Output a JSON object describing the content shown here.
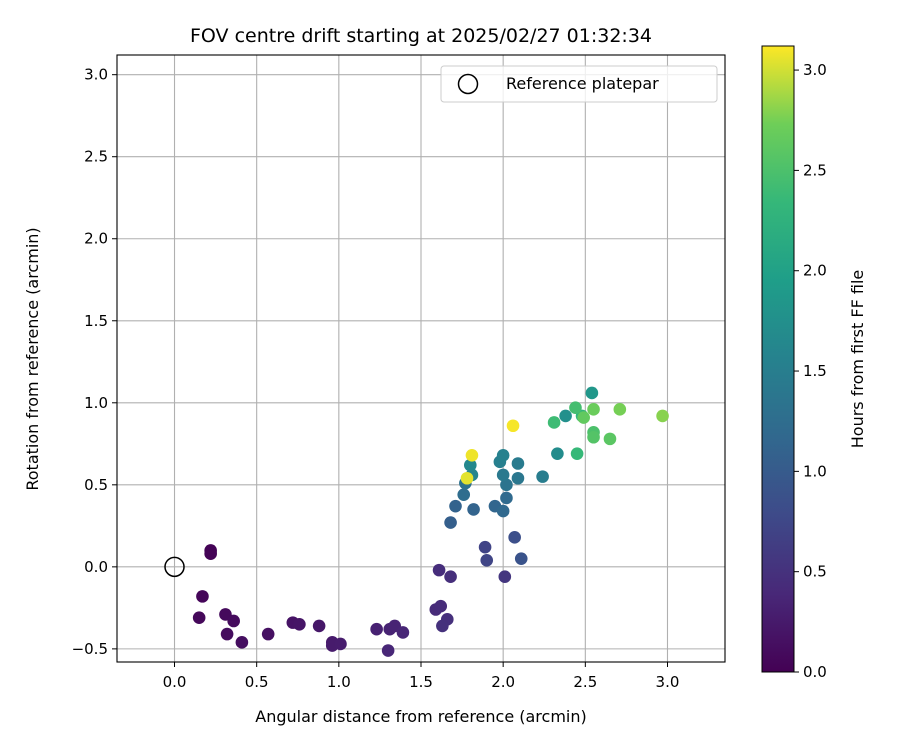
{
  "chart_data": {
    "type": "scatter",
    "title": "FOV centre drift starting at 2025/02/27 01:32:34",
    "xlabel": "Angular distance from reference (arcmin)",
    "ylabel": "Rotation from reference (arcmin)",
    "xlim": [
      -0.35,
      3.35
    ],
    "ylim": [
      -0.58,
      3.12
    ],
    "xticks": [
      "0.0",
      "0.5",
      "1.0",
      "1.5",
      "2.0",
      "2.5",
      "3.0"
    ],
    "yticks": [
      "−0.5",
      "0.0",
      "0.5",
      "1.0",
      "1.5",
      "2.0",
      "2.5",
      "3.0"
    ],
    "xtick_values": [
      0,
      0.5,
      1.0,
      1.5,
      2.0,
      2.5,
      3.0
    ],
    "ytick_values": [
      -0.5,
      0,
      0.5,
      1.0,
      1.5,
      2.0,
      2.5,
      3.0
    ],
    "grid": true,
    "legend": {
      "position": "top-right",
      "label": "Reference platepar"
    },
    "reference_point": {
      "x": 0.0,
      "y": 0.0
    },
    "colorbar": {
      "label": "Hours from first FF file",
      "colormap": "viridis",
      "min": 0.0,
      "max": 3.12,
      "ticks": [
        "0.0",
        "0.5",
        "1.0",
        "1.5",
        "2.0",
        "2.5",
        "3.0"
      ],
      "tick_values": [
        0,
        0.5,
        1.0,
        1.5,
        2.0,
        2.5,
        3.0
      ]
    },
    "points": [
      {
        "x": 0.22,
        "y": 0.1,
        "c": 0.02
      },
      {
        "x": 0.22,
        "y": 0.08,
        "c": 0.02
      },
      {
        "x": 0.17,
        "y": -0.18,
        "c": 0.05
      },
      {
        "x": 0.15,
        "y": -0.31,
        "c": 0.07
      },
      {
        "x": 0.31,
        "y": -0.29,
        "c": 0.09
      },
      {
        "x": 0.36,
        "y": -0.33,
        "c": 0.1
      },
      {
        "x": 0.32,
        "y": -0.41,
        "c": 0.11
      },
      {
        "x": 0.41,
        "y": -0.46,
        "c": 0.13
      },
      {
        "x": 0.57,
        "y": -0.41,
        "c": 0.15
      },
      {
        "x": 0.72,
        "y": -0.34,
        "c": 0.18
      },
      {
        "x": 0.76,
        "y": -0.35,
        "c": 0.2
      },
      {
        "x": 0.88,
        "y": -0.36,
        "c": 0.22
      },
      {
        "x": 0.96,
        "y": -0.46,
        "c": 0.25
      },
      {
        "x": 0.96,
        "y": -0.48,
        "c": 0.26
      },
      {
        "x": 1.01,
        "y": -0.47,
        "c": 0.27
      },
      {
        "x": 1.23,
        "y": -0.38,
        "c": 0.32
      },
      {
        "x": 1.31,
        "y": -0.38,
        "c": 0.34
      },
      {
        "x": 1.34,
        "y": -0.36,
        "c": 0.35
      },
      {
        "x": 1.39,
        "y": -0.4,
        "c": 0.37
      },
      {
        "x": 1.3,
        "y": -0.51,
        "c": 0.38
      },
      {
        "x": 1.59,
        "y": -0.26,
        "c": 0.42
      },
      {
        "x": 1.62,
        "y": -0.24,
        "c": 0.44
      },
      {
        "x": 1.61,
        "y": -0.02,
        "c": 0.45
      },
      {
        "x": 1.68,
        "y": -0.06,
        "c": 0.47
      },
      {
        "x": 1.66,
        "y": -0.32,
        "c": 0.48
      },
      {
        "x": 1.63,
        "y": -0.36,
        "c": 0.49
      },
      {
        "x": 2.01,
        "y": -0.06,
        "c": 0.55
      },
      {
        "x": 1.89,
        "y": 0.12,
        "c": 0.7
      },
      {
        "x": 1.9,
        "y": 0.04,
        "c": 0.72
      },
      {
        "x": 2.07,
        "y": 0.18,
        "c": 0.85
      },
      {
        "x": 2.11,
        "y": 0.05,
        "c": 0.9
      },
      {
        "x": 1.68,
        "y": 0.27,
        "c": 1.05
      },
      {
        "x": 1.71,
        "y": 0.37,
        "c": 1.1
      },
      {
        "x": 1.82,
        "y": 0.35,
        "c": 1.12
      },
      {
        "x": 1.95,
        "y": 0.37,
        "c": 1.15
      },
      {
        "x": 2.0,
        "y": 0.34,
        "c": 1.18
      },
      {
        "x": 2.02,
        "y": 0.42,
        "c": 1.2
      },
      {
        "x": 1.76,
        "y": 0.44,
        "c": 1.25
      },
      {
        "x": 1.77,
        "y": 0.51,
        "c": 1.3
      },
      {
        "x": 2.02,
        "y": 0.5,
        "c": 1.35
      },
      {
        "x": 2.09,
        "y": 0.54,
        "c": 1.4
      },
      {
        "x": 2.0,
        "y": 0.56,
        "c": 1.42
      },
      {
        "x": 2.09,
        "y": 0.63,
        "c": 1.45
      },
      {
        "x": 2.24,
        "y": 0.55,
        "c": 1.48
      },
      {
        "x": 1.98,
        "y": 0.64,
        "c": 1.52
      },
      {
        "x": 2.0,
        "y": 0.68,
        "c": 1.55
      },
      {
        "x": 1.81,
        "y": 0.56,
        "c": 1.6
      },
      {
        "x": 1.8,
        "y": 0.62,
        "c": 1.65
      },
      {
        "x": 2.33,
        "y": 0.69,
        "c": 1.7
      },
      {
        "x": 2.38,
        "y": 0.92,
        "c": 1.75
      },
      {
        "x": 2.54,
        "y": 1.06,
        "c": 1.85
      },
      {
        "x": 2.48,
        "y": 0.92,
        "c": 2.3
      },
      {
        "x": 2.45,
        "y": 0.69,
        "c": 2.35
      },
      {
        "x": 2.31,
        "y": 0.88,
        "c": 2.4
      },
      {
        "x": 2.44,
        "y": 0.97,
        "c": 2.45
      },
      {
        "x": 2.55,
        "y": 0.82,
        "c": 2.5
      },
      {
        "x": 2.55,
        "y": 0.79,
        "c": 2.55
      },
      {
        "x": 2.65,
        "y": 0.78,
        "c": 2.6
      },
      {
        "x": 2.49,
        "y": 0.91,
        "c": 2.65
      },
      {
        "x": 2.55,
        "y": 0.96,
        "c": 2.7
      },
      {
        "x": 2.71,
        "y": 0.96,
        "c": 2.75
      },
      {
        "x": 2.97,
        "y": 0.92,
        "c": 2.8
      },
      {
        "x": 1.78,
        "y": 0.54,
        "c": 3.05
      },
      {
        "x": 1.81,
        "y": 0.68,
        "c": 3.08
      },
      {
        "x": 2.06,
        "y": 0.86,
        "c": 3.1
      }
    ]
  }
}
